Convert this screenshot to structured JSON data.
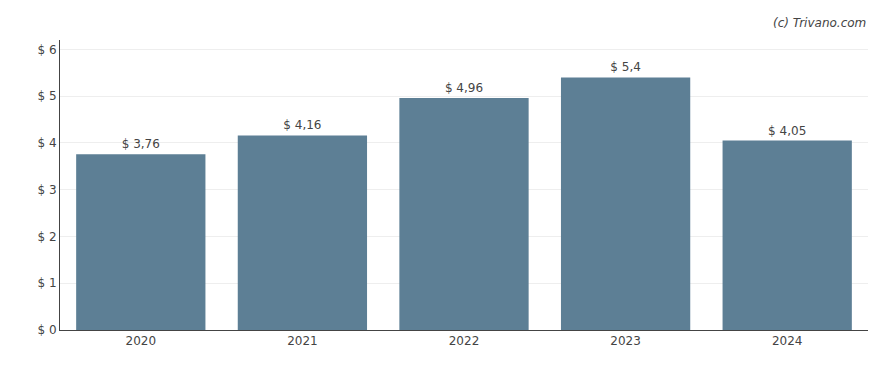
{
  "chart_data": {
    "type": "bar",
    "categories": [
      "2020",
      "2021",
      "2022",
      "2023",
      "2024"
    ],
    "values": [
      3.76,
      4.16,
      4.96,
      5.4,
      4.05
    ],
    "value_labels": [
      "$ 3,76",
      "$ 4,16",
      "$ 4,96",
      "$ 5,4",
      "$ 4,05"
    ],
    "data_labels": true,
    "color": "#5d7f95",
    "ylim": [
      0,
      6.2
    ],
    "yticks": [
      {
        "value": 0,
        "label": "$ 0"
      },
      {
        "value": 1,
        "label": "$ 1"
      },
      {
        "value": 2,
        "label": "$ 2"
      },
      {
        "value": 3,
        "label": "$ 3"
      },
      {
        "value": 4,
        "label": "$ 4"
      },
      {
        "value": 5,
        "label": "$ 5"
      },
      {
        "value": 6,
        "label": "$ 6"
      }
    ],
    "grid": true,
    "annotations": [
      "(c) Trivano.com"
    ]
  }
}
